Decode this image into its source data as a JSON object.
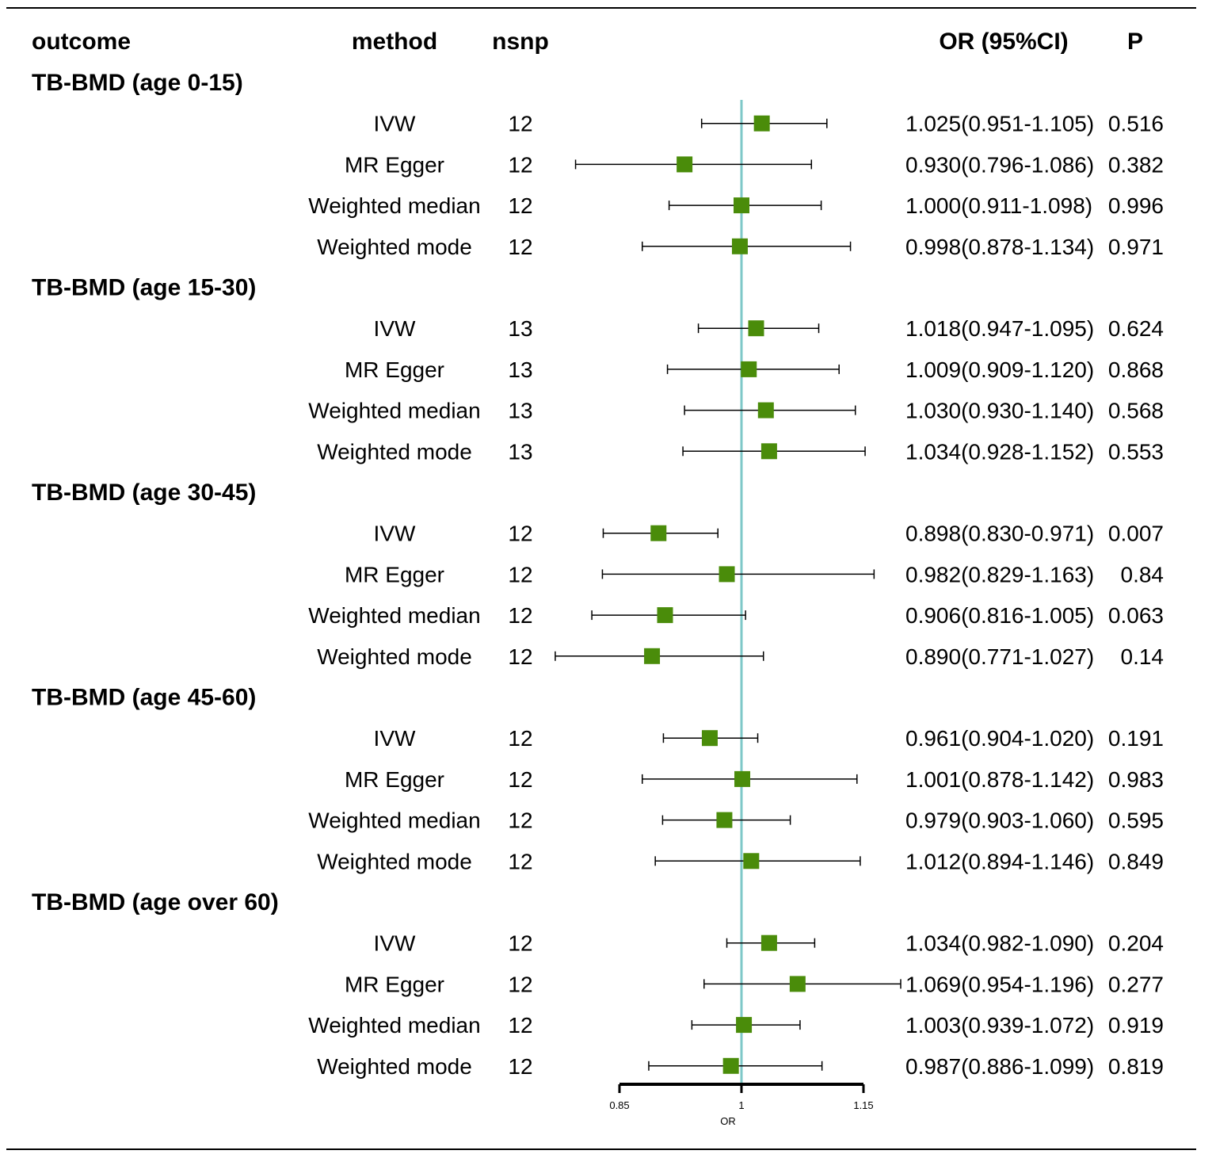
{
  "chart_data": {
    "type": "forest",
    "columns": {
      "outcome": "outcome",
      "method": "method",
      "nsnp": "nsnp",
      "or_ci": "OR (95%CI)",
      "p": "P"
    },
    "xlabel": "OR",
    "xlim": [
      0.85,
      1.15
    ],
    "xticks": [
      "0.85",
      "1",
      "1.15"
    ],
    "reference_line": 1,
    "colors": {
      "box": "#4a8c0a",
      "refline": "#7ec8c8",
      "line": "#000000"
    },
    "groups": [
      {
        "outcome": "TB-BMD (age 0-15)",
        "rows": [
          {
            "method": "IVW",
            "nsnp": "12",
            "or": 1.025,
            "lo": 0.951,
            "hi": 1.105,
            "label": "1.025(0.951-1.105)",
            "p": "0.516"
          },
          {
            "method": "MR Egger",
            "nsnp": "12",
            "or": 0.93,
            "lo": 0.796,
            "hi": 1.086,
            "label": "0.930(0.796-1.086)",
            "p": "0.382"
          },
          {
            "method": "Weighted median",
            "nsnp": "12",
            "or": 1.0,
            "lo": 0.911,
            "hi": 1.098,
            "label": "1.000(0.911-1.098)",
            "p": "0.996"
          },
          {
            "method": "Weighted mode",
            "nsnp": "12",
            "or": 0.998,
            "lo": 0.878,
            "hi": 1.134,
            "label": "0.998(0.878-1.134)",
            "p": "0.971"
          }
        ]
      },
      {
        "outcome": "TB-BMD (age 15-30)",
        "rows": [
          {
            "method": "IVW",
            "nsnp": "13",
            "or": 1.018,
            "lo": 0.947,
            "hi": 1.095,
            "label": "1.018(0.947-1.095)",
            "p": "0.624"
          },
          {
            "method": "MR Egger",
            "nsnp": "13",
            "or": 1.009,
            "lo": 0.909,
            "hi": 1.12,
            "label": "1.009(0.909-1.120)",
            "p": "0.868"
          },
          {
            "method": "Weighted median",
            "nsnp": "13",
            "or": 1.03,
            "lo": 0.93,
            "hi": 1.14,
            "label": "1.030(0.930-1.140)",
            "p": "0.568"
          },
          {
            "method": "Weighted mode",
            "nsnp": "13",
            "or": 1.034,
            "lo": 0.928,
            "hi": 1.152,
            "label": "1.034(0.928-1.152)",
            "p": "0.553"
          }
        ]
      },
      {
        "outcome": "TB-BMD (age 30-45)",
        "rows": [
          {
            "method": "IVW",
            "nsnp": "12",
            "or": 0.898,
            "lo": 0.83,
            "hi": 0.971,
            "label": "0.898(0.830-0.971)",
            "p": "0.007"
          },
          {
            "method": "MR Egger",
            "nsnp": "12",
            "or": 0.982,
            "lo": 0.829,
            "hi": 1.163,
            "label": "0.982(0.829-1.163)",
            "p": " 0.84"
          },
          {
            "method": "Weighted median",
            "nsnp": "12",
            "or": 0.906,
            "lo": 0.816,
            "hi": 1.005,
            "label": "0.906(0.816-1.005)",
            "p": "0.063"
          },
          {
            "method": "Weighted mode",
            "nsnp": "12",
            "or": 0.89,
            "lo": 0.771,
            "hi": 1.027,
            "label": "0.890(0.771-1.027)",
            "p": " 0.14"
          }
        ]
      },
      {
        "outcome": "TB-BMD (age 45-60)",
        "rows": [
          {
            "method": "IVW",
            "nsnp": "12",
            "or": 0.961,
            "lo": 0.904,
            "hi": 1.02,
            "label": "0.961(0.904-1.020)",
            "p": "0.191"
          },
          {
            "method": "MR Egger",
            "nsnp": "12",
            "or": 1.001,
            "lo": 0.878,
            "hi": 1.142,
            "label": "1.001(0.878-1.142)",
            "p": "0.983"
          },
          {
            "method": "Weighted median",
            "nsnp": "12",
            "or": 0.979,
            "lo": 0.903,
            "hi": 1.06,
            "label": "0.979(0.903-1.060)",
            "p": "0.595"
          },
          {
            "method": "Weighted mode",
            "nsnp": "12",
            "or": 1.012,
            "lo": 0.894,
            "hi": 1.146,
            "label": "1.012(0.894-1.146)",
            "p": "0.849"
          }
        ]
      },
      {
        "outcome": "TB-BMD (age over 60)",
        "rows": [
          {
            "method": "IVW",
            "nsnp": "12",
            "or": 1.034,
            "lo": 0.982,
            "hi": 1.09,
            "label": "1.034(0.982-1.090)",
            "p": "0.204"
          },
          {
            "method": "MR Egger",
            "nsnp": "12",
            "or": 1.069,
            "lo": 0.954,
            "hi": 1.196,
            "label": "1.069(0.954-1.196)",
            "p": "0.277"
          },
          {
            "method": "Weighted median",
            "nsnp": "12",
            "or": 1.003,
            "lo": 0.939,
            "hi": 1.072,
            "label": "1.003(0.939-1.072)",
            "p": "0.919"
          },
          {
            "method": "Weighted mode",
            "nsnp": "12",
            "or": 0.987,
            "lo": 0.886,
            "hi": 1.099,
            "label": "0.987(0.886-1.099)",
            "p": "0.819"
          }
        ]
      }
    ]
  }
}
